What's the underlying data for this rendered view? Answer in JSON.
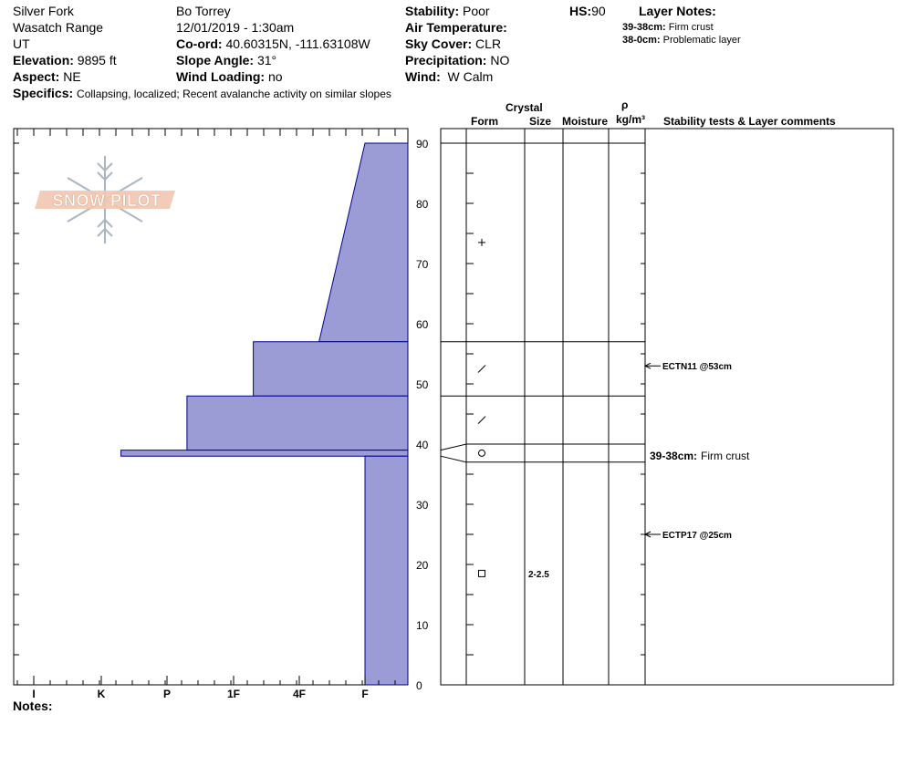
{
  "header": {
    "location": "Silver Fork",
    "range": "Wasatch Range",
    "state": "UT",
    "elevation_label": "Elevation:",
    "elevation_value": "9895 ft",
    "aspect_label": "Aspect:",
    "aspect_value": "NE",
    "observer": "Bo Torrey",
    "datetime": "12/01/2019 - 1:30am",
    "coord_label": "Co-ord:",
    "coord_value": "40.60315N, -111.63108W",
    "slope_label": "Slope Angle:",
    "slope_value": "31°",
    "wind_loading_label": "Wind Loading:",
    "wind_loading_value": "no",
    "stability_label": "Stability:",
    "stability_value": "Poor",
    "air_temp_label": "Air Temperature:",
    "air_temp_value": "",
    "sky_cover_label": "Sky Cover:",
    "sky_cover_value": "CLR",
    "precip_label": "Precipitation:",
    "precip_value": "NO",
    "wind_label": "Wind:",
    "wind_value": "W Calm",
    "hs_label": "HS:",
    "hs_value": "90",
    "layer_notes_label": "Layer Notes:",
    "layer_notes": [
      {
        "range": "39-38cm:",
        "text": "Firm crust"
      },
      {
        "range": "38-0cm:",
        "text": "Problematic layer"
      }
    ],
    "specifics_label": "Specifics:",
    "specifics_value": "Collapsing, localized;  Recent avalanche activity on similar slopes"
  },
  "logo": {
    "text": "SNOW PILOT"
  },
  "columns": {
    "crystal": "Crystal",
    "form": "Form",
    "size": "Size",
    "moisture": "Moisture",
    "rho": "ρ",
    "density_unit": "kg/m³",
    "comments": "Stability tests & Layer comments"
  },
  "notes_label": "Notes:",
  "colors": {
    "hardness_fill": "#9b9bd6",
    "hardness_stroke": "#00008b"
  },
  "chart_data": {
    "type": "snow-profile",
    "y_axis": {
      "min": 0,
      "max": 90,
      "ticks": [
        0,
        10,
        20,
        30,
        40,
        50,
        60,
        70,
        80,
        90
      ]
    },
    "hardness_scale": [
      "I",
      "K",
      "P",
      "1F",
      "4F",
      "F"
    ],
    "hardness_layers": [
      {
        "top": 90,
        "bottom": 57,
        "hardness_top": 6.0,
        "hardness_bottom": 5.3
      },
      {
        "top": 57,
        "bottom": 48,
        "hardness_top": 4.3,
        "hardness_bottom": 4.3
      },
      {
        "top": 48,
        "bottom": 39,
        "hardness_top": 3.3,
        "hardness_bottom": 3.3
      },
      {
        "top": 39,
        "bottom": 38,
        "hardness_top": 2.3,
        "hardness_bottom": 2.3
      },
      {
        "top": 38,
        "bottom": 0,
        "hardness_top": 6.0,
        "hardness_bottom": 6.0
      }
    ],
    "layer_boundaries": [
      90,
      57,
      48,
      40,
      37
    ],
    "grain_forms": [
      {
        "height": 73.5,
        "symbol": "plus"
      },
      {
        "height": 52.5,
        "symbol": "slash"
      },
      {
        "height": 44,
        "symbol": "slash"
      },
      {
        "height": 38.5,
        "symbol": "circle"
      },
      {
        "height": 18.5,
        "symbol": "square",
        "size": "2-2.5"
      }
    ],
    "stability_tests": [
      {
        "height": 53,
        "label": "ECTN11 @53cm"
      },
      {
        "height": 25,
        "label": "ECTP17 @25cm"
      }
    ],
    "layer_comments": [
      {
        "height": 38,
        "range": "39-38cm:",
        "text": "Firm crust"
      }
    ]
  }
}
